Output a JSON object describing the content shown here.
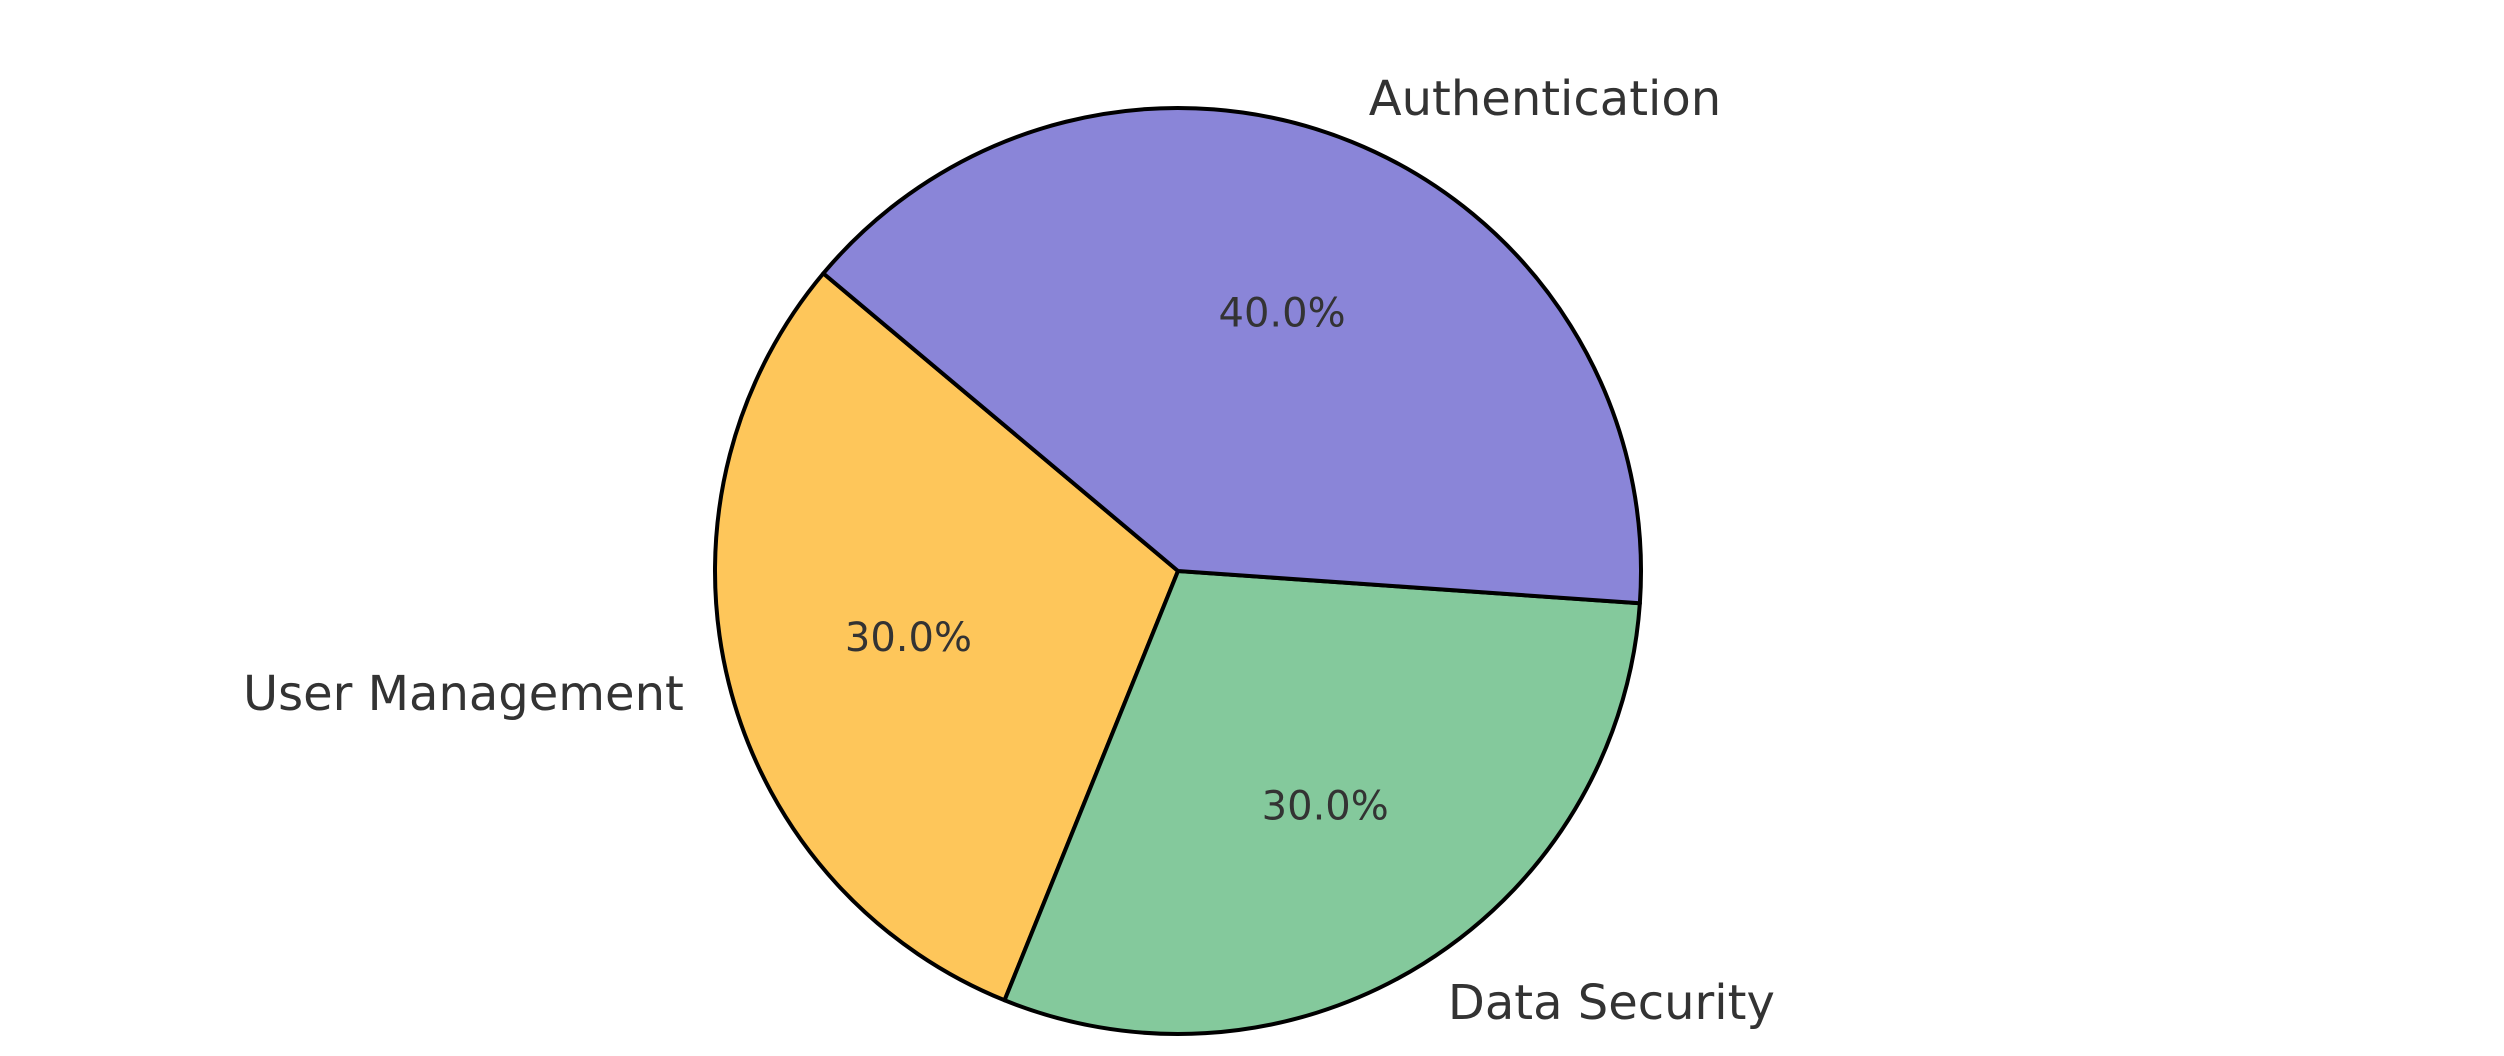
{
  "chart_data": {
    "type": "pie",
    "title": "",
    "categories": [
      "User Management",
      "Data Security",
      "Authentication"
    ],
    "values": [
      30.0,
      30.0,
      40.0
    ],
    "percent_labels": [
      "30.0%",
      "30.0%",
      "40.0%"
    ],
    "colors": [
      "#fec65a",
      "#84c99c",
      "#8a85d8"
    ],
    "start_angle_deg": 140,
    "direction": "counterclockwise",
    "legend": "none"
  }
}
